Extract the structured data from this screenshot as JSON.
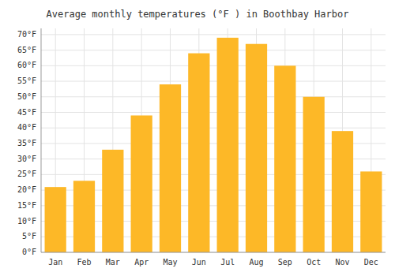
{
  "chart_data": {
    "type": "bar",
    "title": "Average monthly temperatures (°F ) in Boothbay Harbor",
    "categories": [
      "Jan",
      "Feb",
      "Mar",
      "Apr",
      "May",
      "Jun",
      "Jul",
      "Aug",
      "Sep",
      "Oct",
      "Nov",
      "Dec"
    ],
    "values": [
      21,
      23,
      33,
      44,
      54,
      64,
      69,
      67,
      60,
      50,
      39,
      26
    ],
    "color": "#FDB827",
    "ylim": [
      0,
      72
    ],
    "yticks": [
      {
        "value": 0,
        "label": "0°F"
      },
      {
        "value": 5,
        "label": "5°F"
      },
      {
        "value": 10,
        "label": "10°F"
      },
      {
        "value": 15,
        "label": "15°F"
      },
      {
        "value": 20,
        "label": "20°F"
      },
      {
        "value": 25,
        "label": "25°F"
      },
      {
        "value": 30,
        "label": "30°F"
      },
      {
        "value": 35,
        "label": "35°F"
      },
      {
        "value": 40,
        "label": "40°F"
      },
      {
        "value": 45,
        "label": "45°F"
      },
      {
        "value": 50,
        "label": "50°F"
      },
      {
        "value": 55,
        "label": "55°F"
      },
      {
        "value": 60,
        "label": "60°F"
      },
      {
        "value": 65,
        "label": "65°F"
      },
      {
        "value": 70,
        "label": "70°F"
      }
    ],
    "grid": true
  }
}
